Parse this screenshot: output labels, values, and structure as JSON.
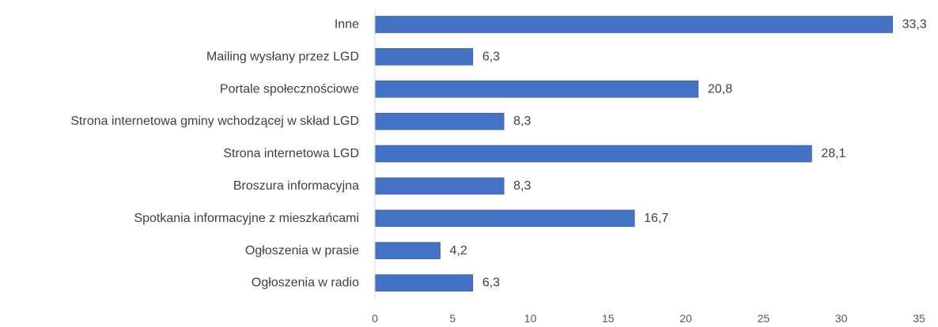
{
  "chart_data": {
    "type": "bar",
    "orientation": "horizontal",
    "categories": [
      "Inne",
      "Mailing wysłany przez LGD",
      "Portale społecznościowe",
      "Strona internetowa gminy wchodzącej w skład LGD",
      "Strona internetowa LGD",
      "Broszura informacyjna",
      "Spotkania informacyjne z mieszkańcami",
      "Ogłoszenia w prasie",
      "Ogłoszenia w radio"
    ],
    "values": [
      33.3,
      6.3,
      20.8,
      8.3,
      28.1,
      8.3,
      16.7,
      4.2,
      6.3
    ],
    "value_labels": [
      "33,3",
      "6,3",
      "20,8",
      "8,3",
      "28,1",
      "8,3",
      "16,7",
      "4,2",
      "6,3"
    ],
    "xlim": [
      0,
      35
    ],
    "xticks": [
      0,
      5,
      10,
      15,
      20,
      25,
      30,
      35
    ],
    "xtick_labels": [
      "0",
      "5",
      "10",
      "15",
      "20",
      "25",
      "30",
      "35"
    ],
    "grid": false,
    "legend": "none",
    "colors": {
      "bar": "#4472c4",
      "bar_edge": "#2f5597",
      "axis": "#d9d9d9"
    }
  }
}
